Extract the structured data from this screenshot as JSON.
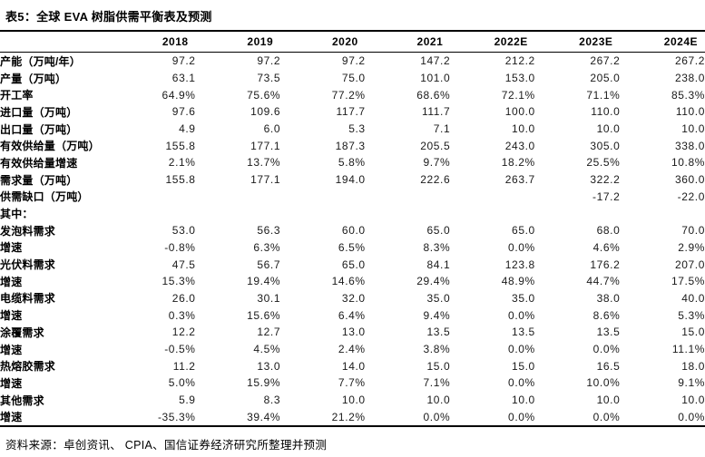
{
  "title": "表5：全球 EVA 树脂供需平衡表及预测",
  "table": {
    "columns": [
      "2018",
      "2019",
      "2020",
      "2021",
      "2022E",
      "2023E",
      "2024E"
    ],
    "rows": [
      {
        "label": "产能（万吨/年）",
        "values": [
          "97.2",
          "97.2",
          "97.2",
          "147.2",
          "212.2",
          "267.2",
          "267.2"
        ]
      },
      {
        "label": "产量（万吨）",
        "values": [
          "63.1",
          "73.5",
          "75.0",
          "101.0",
          "153.0",
          "205.0",
          "238.0"
        ]
      },
      {
        "label": "开工率",
        "values": [
          "64.9%",
          "75.6%",
          "77.2%",
          "68.6%",
          "72.1%",
          "71.1%",
          "85.3%"
        ]
      },
      {
        "label": "进口量（万吨）",
        "values": [
          "97.6",
          "109.6",
          "117.7",
          "111.7",
          "100.0",
          "110.0",
          "110.0"
        ]
      },
      {
        "label": "出口量（万吨）",
        "values": [
          "4.9",
          "6.0",
          "5.3",
          "7.1",
          "10.0",
          "10.0",
          "10.0"
        ]
      },
      {
        "label": "有效供给量（万吨）",
        "values": [
          "155.8",
          "177.1",
          "187.3",
          "205.5",
          "243.0",
          "305.0",
          "338.0"
        ]
      },
      {
        "label": "有效供给量增速",
        "values": [
          "2.1%",
          "13.7%",
          "5.8%",
          "9.7%",
          "18.2%",
          "25.5%",
          "10.8%"
        ]
      },
      {
        "label": "需求量（万吨）",
        "values": [
          "155.8",
          "177.1",
          "194.0",
          "222.6",
          "263.7",
          "322.2",
          "360.0"
        ]
      },
      {
        "label": "供需缺口（万吨）",
        "values": [
          "",
          "",
          "",
          "",
          "",
          "-17.2",
          "-22.0"
        ]
      },
      {
        "label": "其中：",
        "values": [
          "",
          "",
          "",
          "",
          "",
          "",
          ""
        ]
      },
      {
        "label": "发泡料需求",
        "values": [
          "53.0",
          "56.3",
          "60.0",
          "65.0",
          "65.0",
          "68.0",
          "70.0"
        ]
      },
      {
        "label": "增速",
        "values": [
          "-0.8%",
          "6.3%",
          "6.5%",
          "8.3%",
          "0.0%",
          "4.6%",
          "2.9%"
        ]
      },
      {
        "label": "光伏料需求",
        "values": [
          "47.5",
          "56.7",
          "65.0",
          "84.1",
          "123.8",
          "176.2",
          "207.0"
        ]
      },
      {
        "label": "增速",
        "values": [
          "15.3%",
          "19.4%",
          "14.6%",
          "29.4%",
          "48.9%",
          "44.7%",
          "17.5%"
        ]
      },
      {
        "label": "电缆料需求",
        "values": [
          "26.0",
          "30.1",
          "32.0",
          "35.0",
          "35.0",
          "38.0",
          "40.0"
        ]
      },
      {
        "label": "增速",
        "values": [
          "0.3%",
          "15.6%",
          "6.4%",
          "9.4%",
          "0.0%",
          "8.6%",
          "5.3%"
        ]
      },
      {
        "label": "涂覆需求",
        "values": [
          "12.2",
          "12.7",
          "13.0",
          "13.5",
          "13.5",
          "13.5",
          "15.0"
        ]
      },
      {
        "label": "增速",
        "values": [
          "-0.5%",
          "4.5%",
          "2.4%",
          "3.8%",
          "0.0%",
          "0.0%",
          "11.1%"
        ]
      },
      {
        "label": "热熔胶需求",
        "values": [
          "11.2",
          "13.0",
          "14.0",
          "15.0",
          "15.0",
          "16.5",
          "18.0"
        ]
      },
      {
        "label": "增速",
        "values": [
          "5.0%",
          "15.9%",
          "7.7%",
          "7.1%",
          "0.0%",
          "10.0%",
          "9.1%"
        ]
      },
      {
        "label": "其他需求",
        "values": [
          "5.9",
          "8.3",
          "10.0",
          "10.0",
          "10.0",
          "10.0",
          "10.0"
        ]
      },
      {
        "label": "增速",
        "values": [
          "-35.3%",
          "39.4%",
          "21.2%",
          "0.0%",
          "0.0%",
          "0.0%",
          "0.0%"
        ]
      }
    ]
  },
  "footer": {
    "source": "资料来源：卓创资讯、 CPIA、国信证券经济研究所整理并预测"
  },
  "colors": {
    "text": "#1a1a1a",
    "line": "#000000",
    "background": "#ffffff"
  }
}
